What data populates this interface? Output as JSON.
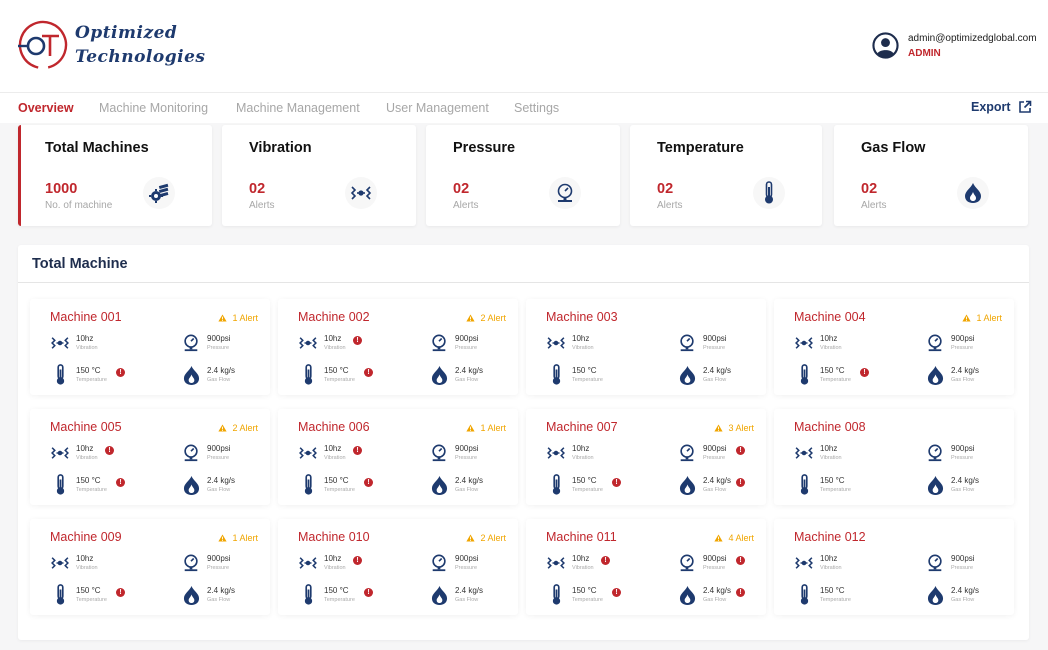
{
  "brand": {
    "line1": "Optimized",
    "line2": "Technologies",
    "primary": "#1e3a6e",
    "accent": "#c0272d"
  },
  "user": {
    "email": "admin@optimizedglobal.com",
    "role": "ADMIN",
    "icon": "user-circle-icon"
  },
  "nav": {
    "items": [
      "Overview",
      "Machine Monitoring",
      "Machine Management",
      "User Management",
      "Settings"
    ],
    "active": "Overview",
    "export_label": "Export"
  },
  "stats": [
    {
      "title": "Total Machines",
      "value": "1000",
      "sub": "No. of machine",
      "icon": "engine-icon"
    },
    {
      "title": "Vibration",
      "value": "02",
      "sub": "Alerts",
      "icon": "vibration-icon"
    },
    {
      "title": "Pressure",
      "value": "02",
      "sub": "Alerts",
      "icon": "gauge-icon"
    },
    {
      "title": "Temperature",
      "value": "02",
      "sub": "Alerts",
      "icon": "thermometer-icon"
    },
    {
      "title": "Gas Flow",
      "value": "02",
      "sub": "Alerts",
      "icon": "gas-flame-icon"
    }
  ],
  "panel": {
    "title": "Total Machine"
  },
  "labels": {
    "vibration": "Vibration",
    "pressure": "Pressure",
    "temperature": "Temperature",
    "gasflow": "Gas Flow"
  },
  "machines": [
    {
      "name": "Machine 001",
      "alert": "1 Alert",
      "vibration": "10hz",
      "pressure": "900psi",
      "temperature": "150 °C",
      "gasflow": "2.4 kg/s"
    },
    {
      "name": "Machine 002",
      "alert": "2 Alert",
      "vibration": "10hz",
      "pressure": "900psi",
      "temperature": "150 °C",
      "gasflow": "2.4 kg/s"
    },
    {
      "name": "Machine 003",
      "alert": "",
      "vibration": "10hz",
      "pressure": "900psi",
      "temperature": "150 °C",
      "gasflow": "2.4 kg/s"
    },
    {
      "name": "Machine 004",
      "alert": "1 Alert",
      "vibration": "10hz",
      "pressure": "900psi",
      "temperature": "150 °C",
      "gasflow": "2.4 kg/s"
    },
    {
      "name": "Machine 005",
      "alert": "2 Alert",
      "vibration": "10hz",
      "pressure": "900psi",
      "temperature": "150 °C",
      "gasflow": "2.4 kg/s"
    },
    {
      "name": "Machine 006",
      "alert": "1 Alert",
      "vibration": "10hz",
      "pressure": "900psi",
      "temperature": "150 °C",
      "gasflow": "2.4 kg/s"
    },
    {
      "name": "Machine 007",
      "alert": "3 Alert",
      "vibration": "10hz",
      "pressure": "900psi",
      "temperature": "150 °C",
      "gasflow": "2.4 kg/s"
    },
    {
      "name": "Machine 008",
      "alert": "",
      "vibration": "10hz",
      "pressure": "900psi",
      "temperature": "150 °C",
      "gasflow": "2.4 kg/s"
    },
    {
      "name": "Machine 009",
      "alert": "1 Alert",
      "vibration": "10hz",
      "pressure": "900psi",
      "temperature": "150 °C",
      "gasflow": "2.4 kg/s"
    },
    {
      "name": "Machine 010",
      "alert": "2 Alert",
      "vibration": "10hz",
      "pressure": "900psi",
      "temperature": "150 °C",
      "gasflow": "2.4 kg/s"
    },
    {
      "name": "Machine 011",
      "alert": "4 Alert",
      "vibration": "10hz",
      "pressure": "900psi",
      "temperature": "150 °C",
      "gasflow": "2.4 kg/s"
    },
    {
      "name": "Machine 012",
      "alert": "",
      "vibration": "10hz",
      "pressure": "900psi",
      "temperature": "150 °C",
      "gasflow": "2.4 kg/s"
    }
  ]
}
